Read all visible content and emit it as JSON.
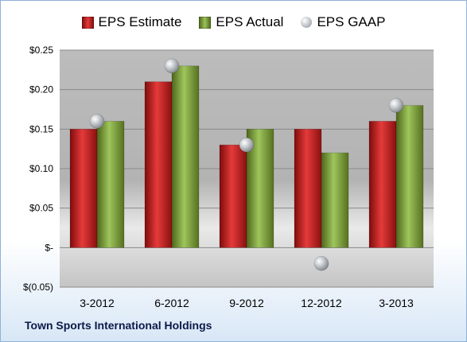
{
  "company": "Town Sports International Holdings",
  "chart_data": {
    "type": "bar",
    "categories": [
      "3-2012",
      "6-2012",
      "9-2012",
      "12-2012",
      "3-2013"
    ],
    "series": [
      {
        "name": "EPS Estimate",
        "kind": "bar",
        "color": "#cc1f1f",
        "values": [
          0.15,
          0.21,
          0.13,
          0.15,
          0.16
        ]
      },
      {
        "name": "EPS Actual",
        "kind": "bar",
        "color": "#7ea23c",
        "values": [
          0.16,
          0.23,
          0.15,
          0.12,
          0.18
        ]
      },
      {
        "name": "EPS GAAP",
        "kind": "marker",
        "color": "#b8bcc1",
        "values": [
          0.16,
          0.23,
          0.13,
          -0.02,
          0.18
        ]
      }
    ],
    "yticks": [
      {
        "value": 0.25,
        "label": "$0.25"
      },
      {
        "value": 0.2,
        "label": "$0.20"
      },
      {
        "value": 0.15,
        "label": "$0.15"
      },
      {
        "value": 0.1,
        "label": "$0.10"
      },
      {
        "value": 0.05,
        "label": "$0.05"
      },
      {
        "value": 0.0,
        "label": "$-"
      },
      {
        "value": -0.05,
        "label": "$(0.05)"
      }
    ],
    "ylim": [
      -0.05,
      0.25
    ],
    "grid": true,
    "legend_position": "top"
  }
}
